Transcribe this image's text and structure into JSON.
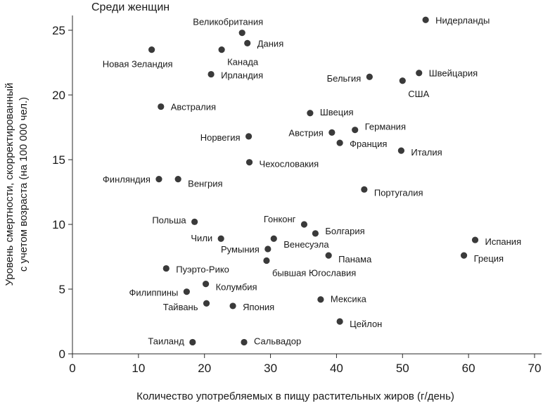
{
  "chart_data": {
    "type": "scatter",
    "title": "Среди женщин",
    "xlabel": "Количество употребляемых в пищу растительных жиров (г/день)",
    "ylabel_line1": "Уровень смертности, скорректированный",
    "ylabel_line2": "с учетом возраста (на 100 000 чел.)",
    "xlim": [
      0,
      70
    ],
    "ylim": [
      0,
      25
    ],
    "xticks": [
      "0",
      "10",
      "20",
      "30",
      "40",
      "50",
      "60",
      "70"
    ],
    "yticks": [
      "0",
      "5",
      "10",
      "15",
      "20",
      "25"
    ],
    "grid": false,
    "points": [
      {
        "label": "Нидерланды",
        "x": 53.5,
        "y": 25.8
      },
      {
        "label": "Великобритания",
        "x": 25.7,
        "y": 24.8
      },
      {
        "label": "Дания",
        "x": 26.5,
        "y": 24.0
      },
      {
        "label": "Новая Зеландия",
        "x": 12.0,
        "y": 23.5
      },
      {
        "label": "Канада",
        "x": 22.6,
        "y": 23.5
      },
      {
        "label": "Ирландия",
        "x": 21.0,
        "y": 21.6
      },
      {
        "label": "Швейцария",
        "x": 52.5,
        "y": 21.7
      },
      {
        "label": "Бельгия",
        "x": 45.0,
        "y": 21.4
      },
      {
        "label": "США",
        "x": 50.0,
        "y": 21.1
      },
      {
        "label": "Австралия",
        "x": 13.4,
        "y": 19.1
      },
      {
        "label": "Швеция",
        "x": 36.0,
        "y": 18.6
      },
      {
        "label": "Германия",
        "x": 42.8,
        "y": 17.3
      },
      {
        "label": "Австрия",
        "x": 39.3,
        "y": 17.1
      },
      {
        "label": "Норвегия",
        "x": 26.7,
        "y": 16.8
      },
      {
        "label": "Франция",
        "x": 40.5,
        "y": 16.3
      },
      {
        "label": "Италия",
        "x": 49.8,
        "y": 15.7
      },
      {
        "label": "Чехословакия",
        "x": 26.8,
        "y": 14.8
      },
      {
        "label": "Финляндия",
        "x": 13.1,
        "y": 13.5
      },
      {
        "label": "Венгрия",
        "x": 16.0,
        "y": 13.5
      },
      {
        "label": "Португалия",
        "x": 44.2,
        "y": 12.7
      },
      {
        "label": "Польша",
        "x": 18.5,
        "y": 10.2
      },
      {
        "label": "Гонконг",
        "x": 35.1,
        "y": 10.0
      },
      {
        "label": "Болгария",
        "x": 36.8,
        "y": 9.3
      },
      {
        "label": "Чили",
        "x": 22.5,
        "y": 8.9
      },
      {
        "label": "Венесуэла",
        "x": 30.5,
        "y": 8.9
      },
      {
        "label": "Испания",
        "x": 61.0,
        "y": 8.8
      },
      {
        "label": "Румыния",
        "x": 29.6,
        "y": 8.1
      },
      {
        "label": "Панама",
        "x": 38.8,
        "y": 7.6
      },
      {
        "label": "Греция",
        "x": 59.3,
        "y": 7.6
      },
      {
        "label": "бывшая Югославия",
        "x": 29.4,
        "y": 7.2
      },
      {
        "label": "Пуэрто-Рико",
        "x": 14.2,
        "y": 6.6
      },
      {
        "label": "Колумбия",
        "x": 20.2,
        "y": 5.4
      },
      {
        "label": "Филиппины",
        "x": 17.3,
        "y": 4.8
      },
      {
        "label": "Мексика",
        "x": 37.6,
        "y": 4.2
      },
      {
        "label": "Тайвань",
        "x": 20.3,
        "y": 3.9
      },
      {
        "label": "Япония",
        "x": 24.3,
        "y": 3.7
      },
      {
        "label": "Цейлон",
        "x": 40.5,
        "y": 2.5
      },
      {
        "label": "Таиланд",
        "x": 18.2,
        "y": 0.9
      },
      {
        "label": "Сальвадор",
        "x": 26.0,
        "y": 0.9
      }
    ]
  }
}
